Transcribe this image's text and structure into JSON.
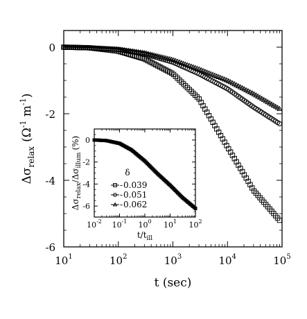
{
  "chart_data": [
    {
      "type": "scatter",
      "scale": {
        "x": "log",
        "y": "linear"
      },
      "xlabel": "t (sec)",
      "ylabel": {
        "base": "Δσ",
        "sub": "relax",
        "unit": "(Ω",
        "unit_exp": "-1",
        "unit_tail": " m",
        "unit_exp2": "-1",
        "close": ")"
      },
      "xlim": [
        10,
        100000
      ],
      "ylim": [
        -6,
        0.5
      ],
      "x_ticks": [
        {
          "label_base": "10",
          "label_exp": "1",
          "value": 10
        },
        {
          "label_base": "10",
          "label_exp": "2",
          "value": 100
        },
        {
          "label_base": "10",
          "label_exp": "3",
          "value": 1000
        },
        {
          "label_base": "10",
          "label_exp": "4",
          "value": 10000
        },
        {
          "label_base": "10",
          "label_exp": "5",
          "value": 100000
        }
      ],
      "y_ticks": [
        {
          "label": "0",
          "value": 0
        },
        {
          "label": "-2",
          "value": -2
        },
        {
          "label": "-4",
          "value": -4
        },
        {
          "label": "-6",
          "value": -6
        }
      ],
      "grid": false,
      "legend": "none",
      "series": [
        {
          "marker": "square",
          "x": [
            10,
            30,
            100,
            300,
            1000,
            3000,
            10000,
            30000,
            90000
          ],
          "y": [
            0,
            -0.02,
            -0.12,
            -0.35,
            -0.8,
            -1.55,
            -3.0,
            -4.3,
            -5.2
          ]
        },
        {
          "marker": "circle",
          "x": [
            10,
            30,
            100,
            300,
            1000,
            3000,
            10000,
            30000,
            90000
          ],
          "y": [
            0,
            -0.02,
            -0.07,
            -0.2,
            -0.45,
            -0.8,
            -1.25,
            -1.8,
            -2.3
          ]
        },
        {
          "marker": "triangle",
          "x": [
            10,
            30,
            100,
            300,
            1000,
            3000,
            10000,
            30000,
            90000
          ],
          "y": [
            0,
            -0.02,
            -0.06,
            -0.17,
            -0.38,
            -0.66,
            -1.0,
            -1.4,
            -1.85
          ]
        }
      ]
    },
    {
      "type": "scatter",
      "inset": true,
      "scale": {
        "x": "log",
        "y": "linear"
      },
      "xlabel": {
        "base": "t/t",
        "sub": "ill"
      },
      "ylabel": {
        "base": "Δσ",
        "sub": "relax",
        "slash": "/Δσ",
        "sub2": "illum",
        "unit": "(%)"
      },
      "xlim": [
        0.01,
        100
      ],
      "ylim": [
        -7,
        1
      ],
      "x_ticks": [
        {
          "label_base": "10",
          "label_exp": "-2",
          "value": 0.01
        },
        {
          "label_base": "10",
          "label_exp": "-1",
          "value": 0.1
        },
        {
          "label_base": "10",
          "label_exp": "0",
          "value": 1
        },
        {
          "label_base": "10",
          "label_exp": "1",
          "value": 10
        },
        {
          "label_base": "10",
          "label_exp": "2",
          "value": 100
        }
      ],
      "y_ticks": [
        {
          "label": "0",
          "value": 0
        },
        {
          "label": "-2",
          "value": -2
        },
        {
          "label": "-4",
          "value": -4
        },
        {
          "label": "-6",
          "value": -6
        }
      ],
      "legend_title": "δ",
      "series": [
        {
          "name": "0.039",
          "marker": "square",
          "x": [
            0.01,
            0.03,
            0.1,
            0.3,
            1,
            3,
            10,
            30,
            100
          ],
          "y": [
            0,
            -0.05,
            -0.3,
            -0.9,
            -1.9,
            -3.0,
            -4.1,
            -5.2,
            -6.2
          ]
        },
        {
          "name": "0.051",
          "marker": "circle",
          "x": [
            0.01,
            0.03,
            0.1,
            0.3,
            1,
            3,
            10,
            30,
            100
          ],
          "y": [
            0,
            -0.06,
            -0.32,
            -0.92,
            -1.92,
            -3.02,
            -4.12,
            -5.22,
            -6.22
          ]
        },
        {
          "name": "0.062",
          "marker": "triangle",
          "x": [
            0.01,
            0.03,
            0.1,
            0.3,
            1,
            3,
            10,
            30,
            100
          ],
          "y": [
            0,
            -0.07,
            -0.34,
            -0.94,
            -1.94,
            -3.04,
            -4.14,
            -5.24,
            -6.24
          ]
        }
      ]
    }
  ]
}
